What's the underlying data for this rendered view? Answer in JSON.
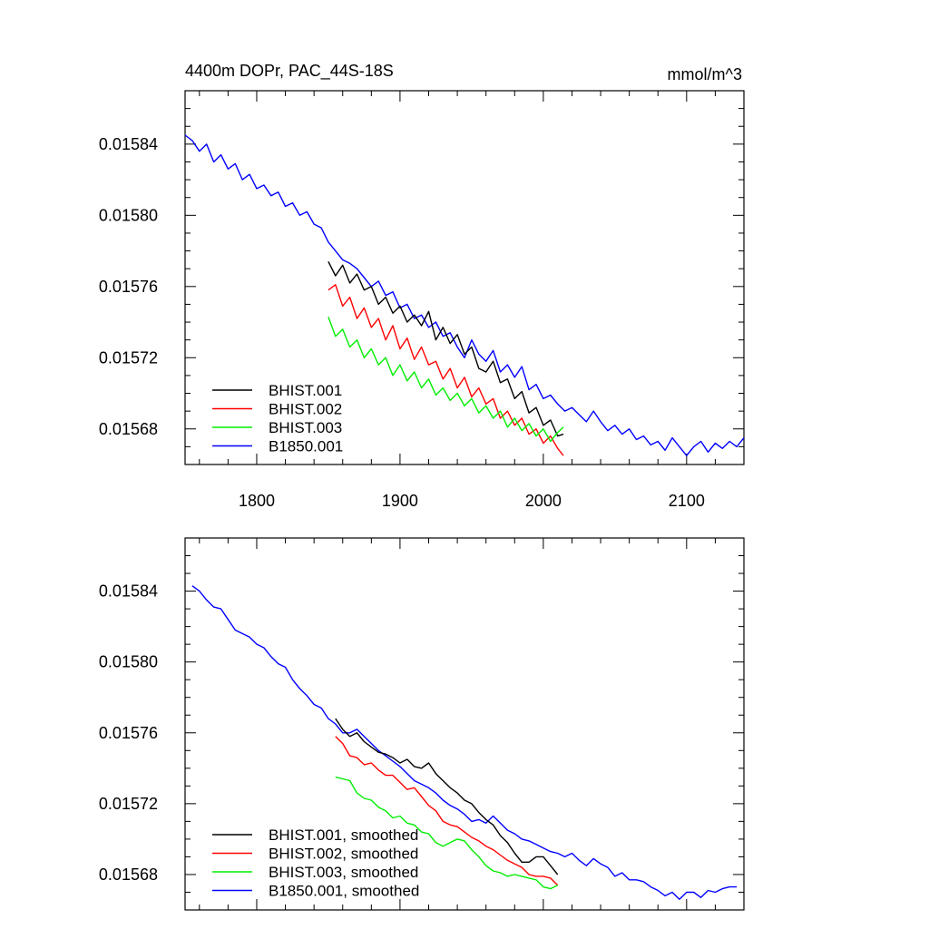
{
  "chart_data": [
    {
      "type": "line",
      "title": "4400m DOPr, PAC_44S-18S",
      "units": "mmol/m^3",
      "xlim": [
        1750,
        2140
      ],
      "ylim": [
        0.01566,
        0.01587
      ],
      "xticks": [
        1800,
        1900,
        2000,
        2100
      ],
      "xtick_labels": [
        "1800",
        "1900",
        "2000",
        "2100"
      ],
      "yticks": [
        0.01568,
        0.01572,
        0.01576,
        0.0158,
        0.01584
      ],
      "ytick_labels": [
        "0.01568",
        "0.01572",
        "0.01576",
        "0.01580",
        "0.01584"
      ],
      "legend_position": "bottom-left",
      "series": [
        {
          "name": "BHIST.001",
          "color": "#000000",
          "x": [
            1850,
            1855,
            1860,
            1865,
            1870,
            1875,
            1880,
            1885,
            1890,
            1895,
            1900,
            1905,
            1910,
            1915,
            1920,
            1925,
            1930,
            1935,
            1940,
            1945,
            1950,
            1955,
            1960,
            1965,
            1970,
            1975,
            1980,
            1985,
            1990,
            1995,
            2000,
            2005,
            2010,
            2014
          ],
          "y": [
            0.015774,
            0.015766,
            0.015772,
            0.015762,
            0.015767,
            0.015758,
            0.01576,
            0.01575,
            0.015754,
            0.015745,
            0.015749,
            0.01574,
            0.015744,
            0.015738,
            0.015746,
            0.01573,
            0.015737,
            0.015728,
            0.015733,
            0.015722,
            0.015726,
            0.015714,
            0.015712,
            0.015718,
            0.015706,
            0.015708,
            0.015697,
            0.015701,
            0.015689,
            0.015692,
            0.015682,
            0.015685,
            0.015676,
            0.015677
          ]
        },
        {
          "name": "BHIST.002",
          "color": "#ff0000",
          "x": [
            1850,
            1855,
            1860,
            1865,
            1870,
            1875,
            1880,
            1885,
            1890,
            1895,
            1900,
            1905,
            1910,
            1915,
            1920,
            1925,
            1930,
            1935,
            1940,
            1945,
            1950,
            1955,
            1960,
            1965,
            1970,
            1975,
            1980,
            1985,
            1990,
            1995,
            2000,
            2005,
            2010,
            2014
          ],
          "y": [
            0.015758,
            0.015761,
            0.015749,
            0.015754,
            0.015742,
            0.015748,
            0.015737,
            0.015742,
            0.01573,
            0.015738,
            0.015725,
            0.015731,
            0.015719,
            0.015726,
            0.015716,
            0.015718,
            0.015708,
            0.015714,
            0.015703,
            0.015709,
            0.015698,
            0.015703,
            0.015694,
            0.015697,
            0.015686,
            0.01569,
            0.015682,
            0.015686,
            0.015677,
            0.01568,
            0.015672,
            0.015676,
            0.015669,
            0.015665
          ]
        },
        {
          "name": "BHIST.003",
          "color": "#00ee00",
          "x": [
            1850,
            1855,
            1860,
            1865,
            1870,
            1875,
            1880,
            1885,
            1890,
            1895,
            1900,
            1905,
            1910,
            1915,
            1920,
            1925,
            1930,
            1935,
            1940,
            1945,
            1950,
            1955,
            1960,
            1965,
            1970,
            1975,
            1980,
            1985,
            1990,
            1995,
            2000,
            2005,
            2010,
            2014
          ],
          "y": [
            0.015743,
            0.015732,
            0.015736,
            0.015726,
            0.01573,
            0.01572,
            0.015725,
            0.015716,
            0.01572,
            0.01571,
            0.015716,
            0.015707,
            0.015712,
            0.015703,
            0.015708,
            0.015699,
            0.015703,
            0.015696,
            0.0157,
            0.015693,
            0.015697,
            0.015689,
            0.015693,
            0.015686,
            0.01569,
            0.015681,
            0.015686,
            0.015679,
            0.015683,
            0.015676,
            0.01568,
            0.015673,
            0.015678,
            0.015681
          ]
        },
        {
          "name": "B1850.001",
          "color": "#0000ff",
          "x": [
            1750,
            1755,
            1760,
            1765,
            1770,
            1775,
            1780,
            1785,
            1790,
            1795,
            1800,
            1805,
            1810,
            1815,
            1820,
            1825,
            1830,
            1835,
            1840,
            1845,
            1850,
            1855,
            1860,
            1865,
            1870,
            1875,
            1880,
            1885,
            1890,
            1895,
            1900,
            1905,
            1910,
            1915,
            1920,
            1925,
            1930,
            1935,
            1940,
            1945,
            1950,
            1955,
            1960,
            1965,
            1970,
            1975,
            1980,
            1985,
            1990,
            1995,
            2000,
            2005,
            2010,
            2015,
            2020,
            2025,
            2030,
            2035,
            2040,
            2045,
            2050,
            2055,
            2060,
            2065,
            2070,
            2075,
            2080,
            2085,
            2090,
            2095,
            2100,
            2105,
            2110,
            2115,
            2120,
            2125,
            2130,
            2135,
            2140
          ],
          "y": [
            0.015845,
            0.015842,
            0.015836,
            0.01584,
            0.01583,
            0.015834,
            0.015826,
            0.015829,
            0.01582,
            0.015823,
            0.015815,
            0.015817,
            0.015811,
            0.015813,
            0.015805,
            0.015807,
            0.0158,
            0.015802,
            0.015795,
            0.015793,
            0.015785,
            0.01578,
            0.015775,
            0.015773,
            0.01577,
            0.015765,
            0.01576,
            0.015763,
            0.015755,
            0.015757,
            0.015748,
            0.01575,
            0.015742,
            0.015744,
            0.015737,
            0.01574,
            0.015732,
            0.015734,
            0.015726,
            0.01572,
            0.01573,
            0.015722,
            0.015718,
            0.015724,
            0.015712,
            0.015716,
            0.015709,
            0.015715,
            0.015702,
            0.015705,
            0.015697,
            0.015699,
            0.015694,
            0.01569,
            0.015692,
            0.015688,
            0.015684,
            0.01569,
            0.015684,
            0.015679,
            0.015682,
            0.015677,
            0.01568,
            0.015674,
            0.015676,
            0.015671,
            0.015673,
            0.015668,
            0.015675,
            0.01567,
            0.015665,
            0.01567,
            0.015673,
            0.015667,
            0.015672,
            0.015669,
            0.015673,
            0.01567,
            0.015675
          ]
        }
      ]
    },
    {
      "type": "line",
      "xlim": [
        1750,
        2140
      ],
      "ylim": [
        0.01566,
        0.01587
      ],
      "xticks": [
        1800,
        1900,
        2000,
        2100
      ],
      "yticks": [
        0.01568,
        0.01572,
        0.01576,
        0.0158,
        0.01584
      ],
      "ytick_labels": [
        "0.01568",
        "0.01572",
        "0.01576",
        "0.01580",
        "0.01584"
      ],
      "legend_position": "bottom-left",
      "series": [
        {
          "name": "BHIST.001, smoothed",
          "color": "#000000",
          "x": [
            1855,
            1860,
            1865,
            1870,
            1875,
            1880,
            1885,
            1890,
            1895,
            1900,
            1905,
            1910,
            1915,
            1920,
            1925,
            1930,
            1935,
            1940,
            1945,
            1950,
            1955,
            1960,
            1965,
            1970,
            1975,
            1980,
            1985,
            1990,
            1995,
            2000,
            2005,
            2010
          ],
          "y": [
            0.015768,
            0.015762,
            0.015758,
            0.01576,
            0.015755,
            0.015752,
            0.015749,
            0.015748,
            0.015746,
            0.015743,
            0.015745,
            0.015741,
            0.01574,
            0.015743,
            0.015737,
            0.015733,
            0.015729,
            0.015726,
            0.015722,
            0.01572,
            0.015715,
            0.015711,
            0.015708,
            0.015702,
            0.015698,
            0.015692,
            0.015687,
            0.015687,
            0.01569,
            0.01569,
            0.015685,
            0.01568
          ]
        },
        {
          "name": "BHIST.002, smoothed",
          "color": "#ff0000",
          "x": [
            1855,
            1860,
            1865,
            1870,
            1875,
            1880,
            1885,
            1890,
            1895,
            1900,
            1905,
            1910,
            1915,
            1920,
            1925,
            1930,
            1935,
            1940,
            1945,
            1950,
            1955,
            1960,
            1965,
            1970,
            1975,
            1980,
            1985,
            1990,
            1995,
            2000,
            2005,
            2010
          ],
          "y": [
            0.015758,
            0.015754,
            0.015747,
            0.015746,
            0.015742,
            0.015743,
            0.015739,
            0.015736,
            0.015736,
            0.015732,
            0.015728,
            0.015729,
            0.015724,
            0.015719,
            0.015716,
            0.01571,
            0.015708,
            0.015707,
            0.015704,
            0.015701,
            0.015699,
            0.015696,
            0.015694,
            0.015691,
            0.015688,
            0.015686,
            0.015684,
            0.01568,
            0.015679,
            0.015679,
            0.015678,
            0.015674
          ]
        },
        {
          "name": "BHIST.003, smoothed",
          "color": "#00ee00",
          "x": [
            1855,
            1860,
            1865,
            1870,
            1875,
            1880,
            1885,
            1890,
            1895,
            1900,
            1905,
            1910,
            1915,
            1920,
            1925,
            1930,
            1935,
            1940,
            1945,
            1950,
            1955,
            1960,
            1965,
            1970,
            1975,
            1980,
            1985,
            1990,
            1995,
            2000,
            2005,
            2010
          ],
          "y": [
            0.015735,
            0.015734,
            0.015733,
            0.015726,
            0.015723,
            0.015722,
            0.015718,
            0.015716,
            0.015712,
            0.015713,
            0.015709,
            0.015708,
            0.015704,
            0.015703,
            0.015698,
            0.015696,
            0.015698,
            0.0157,
            0.015699,
            0.015694,
            0.01569,
            0.015685,
            0.015682,
            0.015681,
            0.015679,
            0.01568,
            0.015679,
            0.015678,
            0.015677,
            0.015673,
            0.015672,
            0.015674
          ]
        },
        {
          "name": "B1850.001, smoothed",
          "color": "#0000ff",
          "x": [
            1755,
            1760,
            1765,
            1770,
            1775,
            1780,
            1785,
            1790,
            1795,
            1800,
            1805,
            1810,
            1815,
            1820,
            1825,
            1830,
            1835,
            1840,
            1845,
            1850,
            1855,
            1860,
            1865,
            1870,
            1875,
            1880,
            1885,
            1890,
            1895,
            1900,
            1905,
            1910,
            1915,
            1920,
            1925,
            1930,
            1935,
            1940,
            1945,
            1950,
            1955,
            1960,
            1965,
            1970,
            1975,
            1980,
            1985,
            1990,
            1995,
            2000,
            2005,
            2010,
            2015,
            2020,
            2025,
            2030,
            2035,
            2040,
            2045,
            2050,
            2055,
            2060,
            2065,
            2070,
            2075,
            2080,
            2085,
            2090,
            2095,
            2100,
            2105,
            2110,
            2115,
            2120,
            2125,
            2130,
            2135
          ],
          "y": [
            0.015843,
            0.01584,
            0.015835,
            0.015831,
            0.01583,
            0.015824,
            0.015818,
            0.015816,
            0.015814,
            0.01581,
            0.015808,
            0.015803,
            0.015799,
            0.015797,
            0.01579,
            0.015785,
            0.015781,
            0.015776,
            0.015774,
            0.015768,
            0.015765,
            0.01576,
            0.01576,
            0.015762,
            0.015758,
            0.015754,
            0.01575,
            0.015747,
            0.015744,
            0.015741,
            0.015737,
            0.015733,
            0.015731,
            0.015729,
            0.015726,
            0.015722,
            0.015719,
            0.015717,
            0.015714,
            0.01571,
            0.015711,
            0.015709,
            0.015713,
            0.015709,
            0.015705,
            0.015703,
            0.0157,
            0.015699,
            0.015697,
            0.015695,
            0.015693,
            0.015692,
            0.01569,
            0.015692,
            0.015688,
            0.015685,
            0.015689,
            0.015686,
            0.015684,
            0.015679,
            0.015681,
            0.015677,
            0.015677,
            0.015676,
            0.015673,
            0.015671,
            0.015668,
            0.01567,
            0.015666,
            0.01567,
            0.01567,
            0.015667,
            0.015671,
            0.01567,
            0.015672,
            0.015673,
            0.015673
          ]
        }
      ]
    }
  ]
}
